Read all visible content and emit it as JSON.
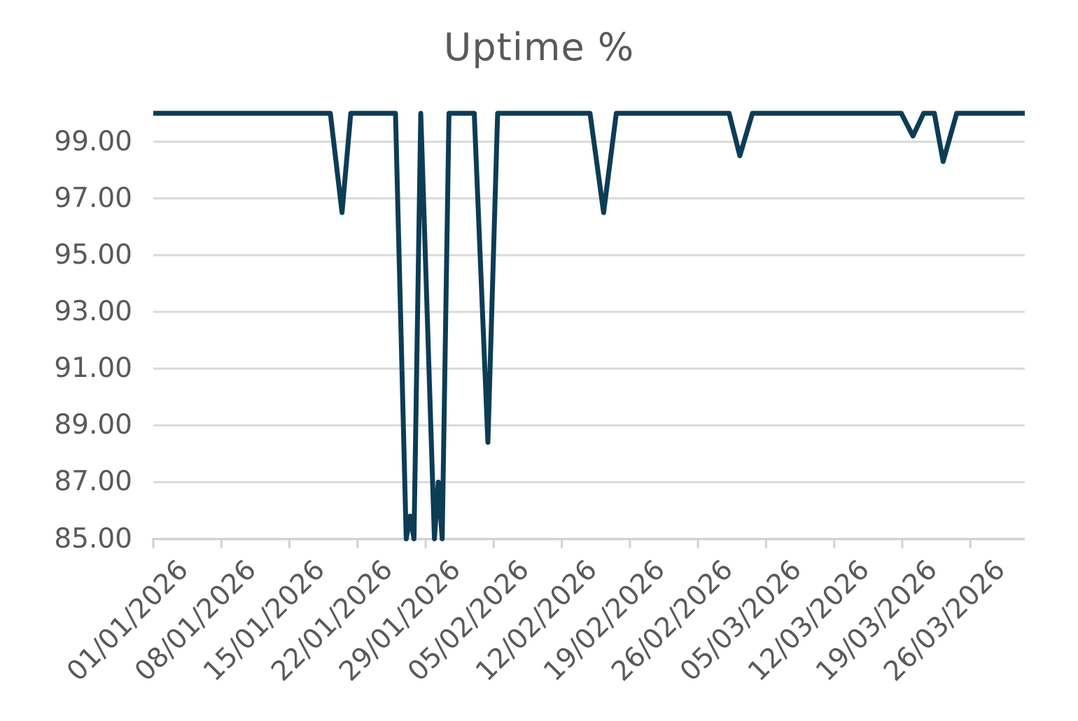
{
  "chart_data": {
    "type": "line",
    "title": "Uptime %",
    "legend": "none",
    "grid": "horizontal",
    "x_axis": {
      "start_date": "01/01/2026",
      "tick_interval_days": 7,
      "range_days": [
        0,
        89.6
      ],
      "tick_labels": [
        "01/01/2026",
        "08/01/2026",
        "15/01/2026",
        "22/01/2026",
        "29/01/2026",
        "05/02/2026",
        "12/02/2026",
        "19/02/2026",
        "26/02/2026",
        "05/03/2026",
        "12/03/2026",
        "19/03/2026",
        "26/03/2026"
      ]
    },
    "y_axis": {
      "ylim": [
        85,
        100
      ],
      "tick_values": [
        99,
        97,
        95,
        93,
        91,
        89,
        87,
        85
      ],
      "tick_labels": [
        "99.00",
        "97.00",
        "95.00",
        "93.00",
        "91.00",
        "89.00",
        "87.00",
        "85.00"
      ]
    },
    "series": [
      {
        "name": "Uptime %",
        "color": "#0d3c55",
        "points_days_value": [
          [
            0.0,
            100
          ],
          [
            18.2,
            100
          ],
          [
            19.4,
            96.5
          ],
          [
            20.3,
            100
          ],
          [
            24.9,
            100
          ],
          [
            26.0,
            85
          ],
          [
            26.4,
            85.8
          ],
          [
            26.8,
            85
          ],
          [
            27.5,
            100
          ],
          [
            28.9,
            85
          ],
          [
            29.3,
            87
          ],
          [
            29.7,
            85
          ],
          [
            30.4,
            100
          ],
          [
            33.0,
            100
          ],
          [
            34.4,
            88.4
          ],
          [
            35.4,
            100
          ],
          [
            44.9,
            100
          ],
          [
            46.3,
            96.5
          ],
          [
            47.6,
            100
          ],
          [
            59.2,
            100
          ],
          [
            60.3,
            98.5
          ],
          [
            61.6,
            100
          ],
          [
            76.9,
            100
          ],
          [
            78.1,
            99.2
          ],
          [
            79.2,
            100
          ],
          [
            80.3,
            100
          ],
          [
            81.2,
            98.3
          ],
          [
            82.6,
            100
          ],
          [
            89.6,
            100
          ]
        ]
      }
    ],
    "dip_events": [
      {
        "date": "20/01/2026",
        "min": 96.5
      },
      {
        "date": "27/01/2026",
        "min": 85.0
      },
      {
        "date": "28/01/2026",
        "min": 85.0
      },
      {
        "date": "30/01/2026",
        "min": 85.0
      },
      {
        "date": "04/02/2026",
        "min": 88.4
      },
      {
        "date": "16/02/2026",
        "min": 96.5
      },
      {
        "date": "02/03/2026",
        "min": 98.5
      },
      {
        "date": "20/03/2026",
        "min": 99.2
      },
      {
        "date": "22/03/2026",
        "min": 98.3
      }
    ],
    "colors": {
      "line": "#0d3c55",
      "gridline": "#d9d9d9",
      "axis": "#d2d2d2",
      "tick": "#d2d2d2",
      "axis_label": "#595959",
      "title": "#595959",
      "background": "#ffffff"
    }
  }
}
